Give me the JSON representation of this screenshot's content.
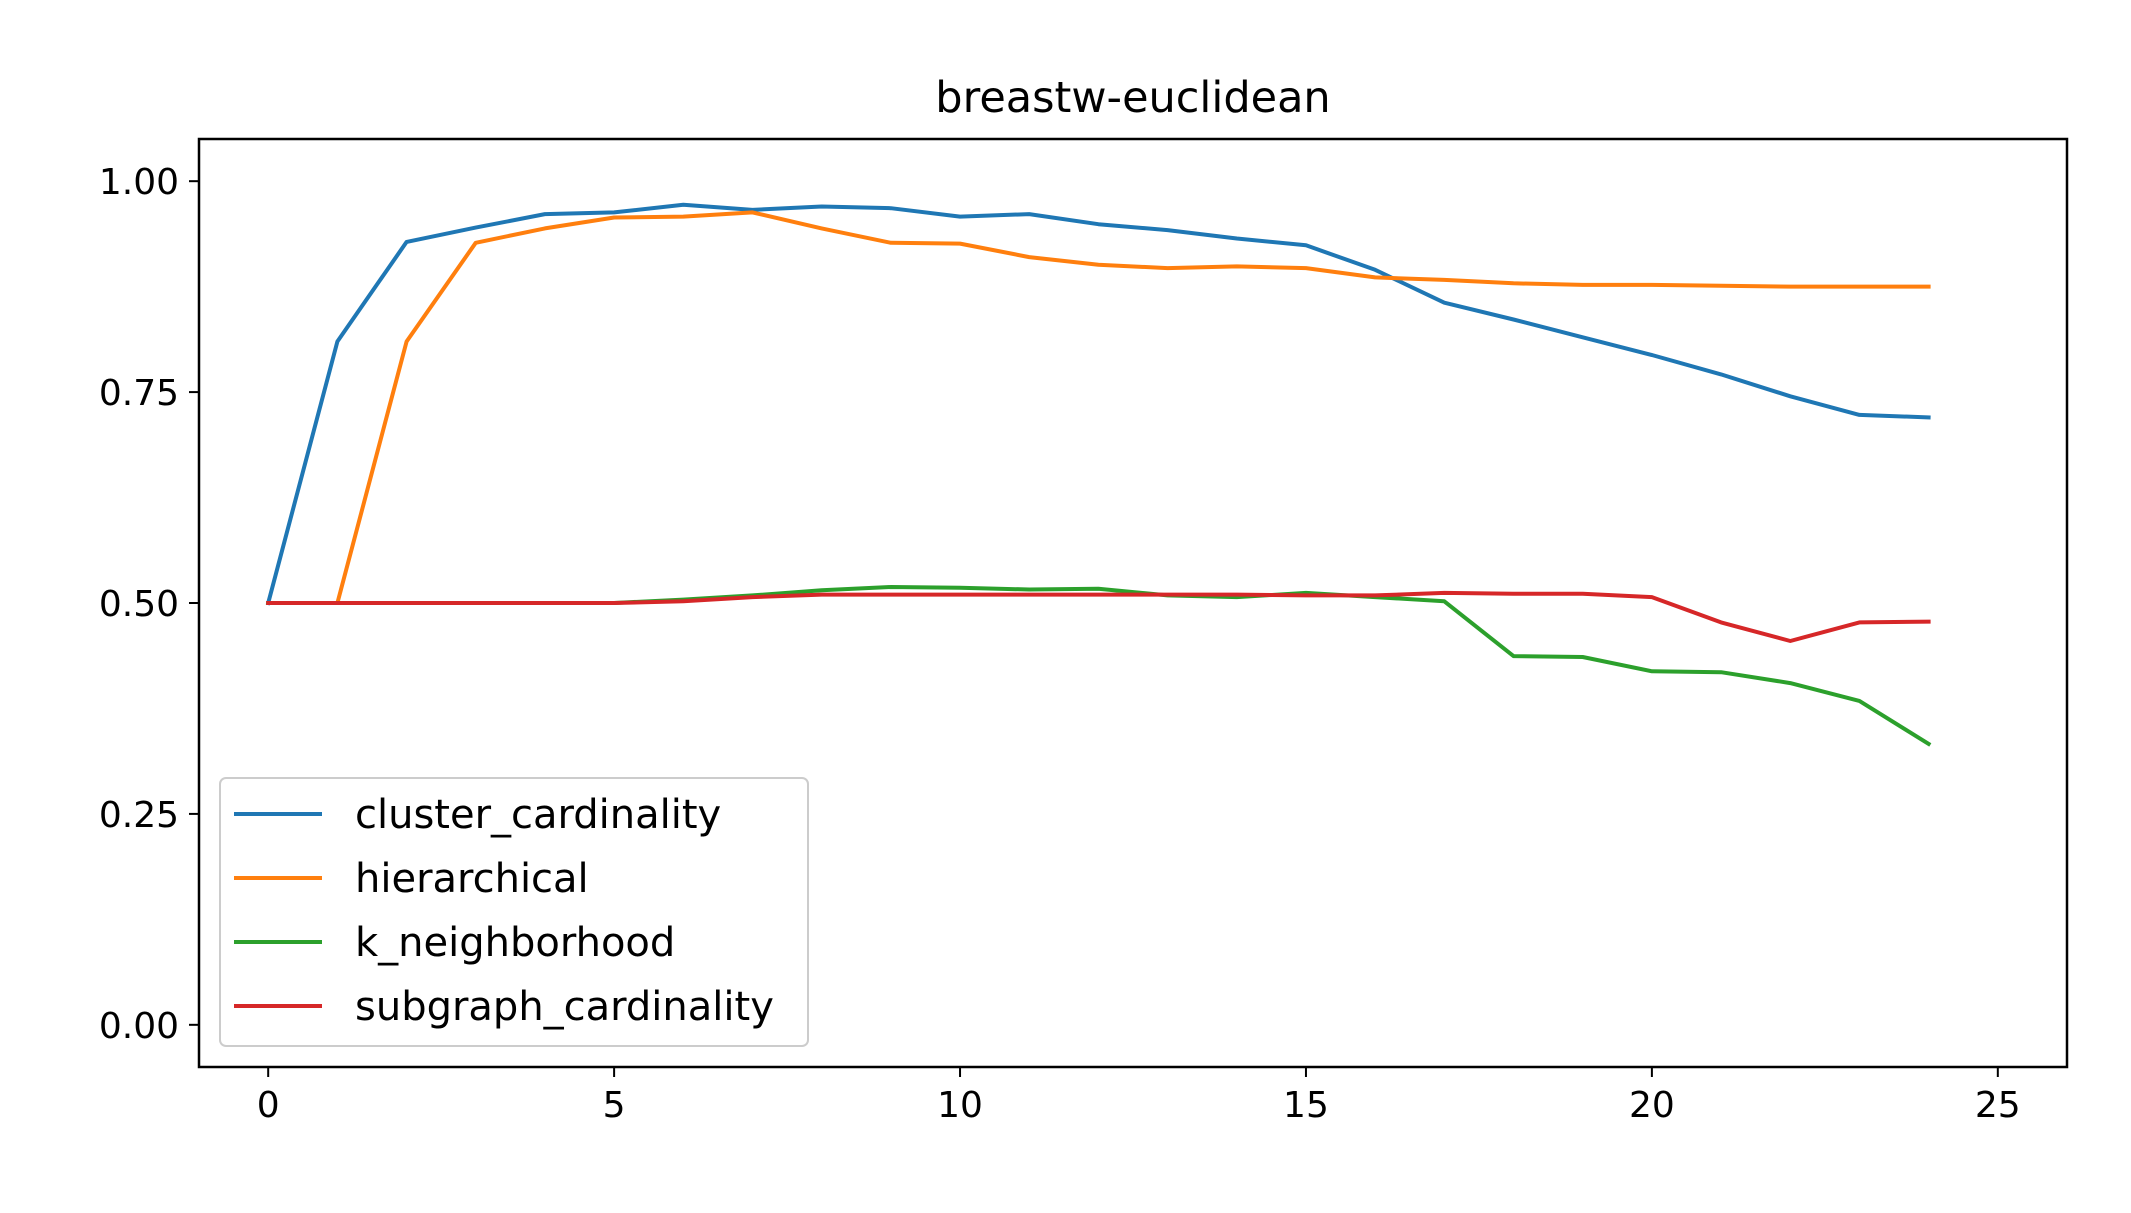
{
  "chart_data": {
    "type": "line",
    "title": "breastw-euclidean",
    "xlabel": "",
    "ylabel": "",
    "xlim": [
      -1,
      26
    ],
    "ylim": [
      -0.05,
      1.05
    ],
    "xticks": [
      0,
      5,
      10,
      15,
      20,
      25
    ],
    "xtick_labels": [
      "0",
      "5",
      "10",
      "15",
      "20",
      "25"
    ],
    "yticks": [
      0.0,
      0.25,
      0.5,
      0.75,
      1.0
    ],
    "ytick_labels": [
      "0.00",
      "0.25",
      "0.50",
      "0.75",
      "1.00"
    ],
    "grid": false,
    "legend_position": "lower-left",
    "x": [
      0,
      1,
      2,
      3,
      4,
      5,
      6,
      7,
      8,
      9,
      10,
      11,
      12,
      13,
      14,
      15,
      16,
      17,
      18,
      19,
      20,
      21,
      22,
      23,
      24
    ],
    "series": [
      {
        "name": "cluster_cardinality",
        "color": "#1f77b4",
        "values": [
          0.5,
          0.81,
          0.928,
          0.945,
          0.961,
          0.963,
          0.972,
          0.966,
          0.97,
          0.968,
          0.958,
          0.961,
          0.949,
          0.942,
          0.932,
          0.924,
          0.895,
          0.856,
          0.836,
          0.815,
          0.794,
          0.771,
          0.745,
          0.723,
          0.72
        ]
      },
      {
        "name": "hierarchical",
        "color": "#ff7f0e",
        "values": [
          0.5,
          0.5,
          0.81,
          0.927,
          0.944,
          0.957,
          0.958,
          0.963,
          0.944,
          0.927,
          0.926,
          0.91,
          0.901,
          0.897,
          0.899,
          0.897,
          0.886,
          0.883,
          0.879,
          0.877,
          0.877,
          0.876,
          0.875,
          0.875,
          0.875
        ]
      },
      {
        "name": "k_neighborhood",
        "color": "#2ca02c",
        "values": [
          0.5,
          0.5,
          0.5,
          0.5,
          0.5,
          0.5,
          0.504,
          0.509,
          0.515,
          0.519,
          0.518,
          0.516,
          0.517,
          0.509,
          0.507,
          0.512,
          0.507,
          0.502,
          0.437,
          0.436,
          0.419,
          0.418,
          0.405,
          0.384,
          0.333
        ]
      },
      {
        "name": "subgraph_cardinality",
        "color": "#d62728",
        "values": [
          0.5,
          0.5,
          0.5,
          0.5,
          0.5,
          0.5,
          0.502,
          0.507,
          0.51,
          0.51,
          0.51,
          0.51,
          0.51,
          0.51,
          0.51,
          0.509,
          0.509,
          0.512,
          0.511,
          0.511,
          0.507,
          0.477,
          0.455,
          0.477,
          0.478
        ]
      }
    ]
  }
}
